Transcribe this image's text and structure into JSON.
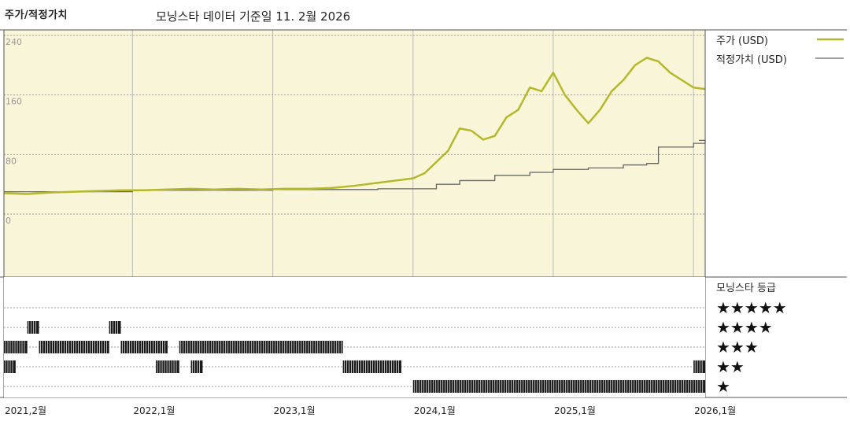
{
  "header": {
    "left_title": "주가/적정가치",
    "center_title": "모닝스타 데이터 기준일 11. 2월 2026"
  },
  "colors": {
    "price": "#b5b82b",
    "fair_value": "#666666",
    "plot_bg": "#f8f5d8",
    "grid": "#9a9a9a",
    "rating_bar": "#1a1a1a"
  },
  "chart_data": {
    "type": "line",
    "xlabel": "",
    "ylabel": "",
    "ylim": [
      0,
      240
    ],
    "yticks": [
      "240",
      "160",
      "80",
      "0"
    ],
    "ytick_values": [
      240,
      160,
      80,
      0
    ],
    "x_range": [
      "2021-02",
      "2026-02"
    ],
    "xticks": [
      "2021,2월",
      "2022,1월",
      "2023,1월",
      "2024,1월",
      "2025,1월",
      "2026,1월"
    ],
    "xtick_values": [
      "2021-02",
      "2022-01",
      "2023-01",
      "2024-01",
      "2025-01",
      "2026-01"
    ],
    "legend": [
      {
        "label": "주가 (USD)",
        "key": "price"
      },
      {
        "label": "적정가치 (USD)",
        "key": "fair_value"
      }
    ],
    "legend_position": "right",
    "grid": true,
    "series": [
      {
        "name": "주가 (USD)",
        "points": [
          [
            "2021-02",
            28
          ],
          [
            "2021-04",
            27
          ],
          [
            "2021-06",
            29
          ],
          [
            "2021-08",
            30
          ],
          [
            "2021-10",
            31
          ],
          [
            "2021-12",
            32
          ],
          [
            "2022-02",
            32
          ],
          [
            "2022-04",
            33
          ],
          [
            "2022-06",
            34
          ],
          [
            "2022-08",
            33
          ],
          [
            "2022-10",
            34
          ],
          [
            "2022-12",
            33
          ],
          [
            "2023-02",
            34
          ],
          [
            "2023-04",
            34
          ],
          [
            "2023-06",
            35
          ],
          [
            "2023-08",
            38
          ],
          [
            "2023-10",
            42
          ],
          [
            "2023-12",
            46
          ],
          [
            "2024-01",
            48
          ],
          [
            "2024-02",
            55
          ],
          [
            "2024-03",
            70
          ],
          [
            "2024-04",
            85
          ],
          [
            "2024-05",
            115
          ],
          [
            "2024-06",
            112
          ],
          [
            "2024-07",
            100
          ],
          [
            "2024-08",
            105
          ],
          [
            "2024-09",
            130
          ],
          [
            "2024-10",
            140
          ],
          [
            "2024-11",
            170
          ],
          [
            "2024-12",
            165
          ],
          [
            "2025-01",
            190
          ],
          [
            "2025-02",
            160
          ],
          [
            "2025-03",
            140
          ],
          [
            "2025-04",
            122
          ],
          [
            "2025-05",
            140
          ],
          [
            "2025-06",
            165
          ],
          [
            "2025-07",
            180
          ],
          [
            "2025-08",
            200
          ],
          [
            "2025-09",
            210
          ],
          [
            "2025-10",
            205
          ],
          [
            "2025-11",
            190
          ],
          [
            "2025-12",
            180
          ],
          [
            "2026-01",
            170
          ],
          [
            "2026-02",
            168
          ]
        ]
      },
      {
        "name": "적정가치 (USD)",
        "points": [
          [
            "2021-02",
            30
          ],
          [
            "2022-01",
            32
          ],
          [
            "2023-01",
            33
          ],
          [
            "2023-10",
            34
          ],
          [
            "2024-01",
            34
          ],
          [
            "2024-03",
            40
          ],
          [
            "2024-05",
            45
          ],
          [
            "2024-08",
            52
          ],
          [
            "2024-11",
            56
          ],
          [
            "2025-01",
            60
          ],
          [
            "2025-04",
            62
          ],
          [
            "2025-07",
            66
          ],
          [
            "2025-09",
            68
          ],
          [
            "2025-10",
            90
          ],
          [
            "2026-01",
            95
          ],
          [
            "2026-02",
            99
          ]
        ]
      }
    ]
  },
  "rating_panel": {
    "title": "모닝스타 등급",
    "rows": [
      "★★★★★",
      "★★★★",
      "★★★",
      "★★",
      "★"
    ],
    "segments": [
      {
        "stars": 4,
        "from": "2021-04",
        "to": "2021-05"
      },
      {
        "stars": 4,
        "from": "2021-11",
        "to": "2021-12"
      },
      {
        "stars": 3,
        "from": "2021-02",
        "to": "2021-04"
      },
      {
        "stars": 3,
        "from": "2021-05",
        "to": "2021-11"
      },
      {
        "stars": 3,
        "from": "2021-12",
        "to": "2022-04"
      },
      {
        "stars": 3,
        "from": "2022-05",
        "to": "2023-07"
      },
      {
        "stars": 2,
        "from": "2021-02",
        "to": "2021-03"
      },
      {
        "stars": 2,
        "from": "2022-03",
        "to": "2022-05"
      },
      {
        "stars": 2,
        "from": "2022-06",
        "to": "2022-07"
      },
      {
        "stars": 2,
        "from": "2023-07",
        "to": "2023-12"
      },
      {
        "stars": 2,
        "from": "2026-01",
        "to": "2026-02"
      },
      {
        "stars": 1,
        "from": "2024-01",
        "to": "2026-02"
      }
    ]
  }
}
